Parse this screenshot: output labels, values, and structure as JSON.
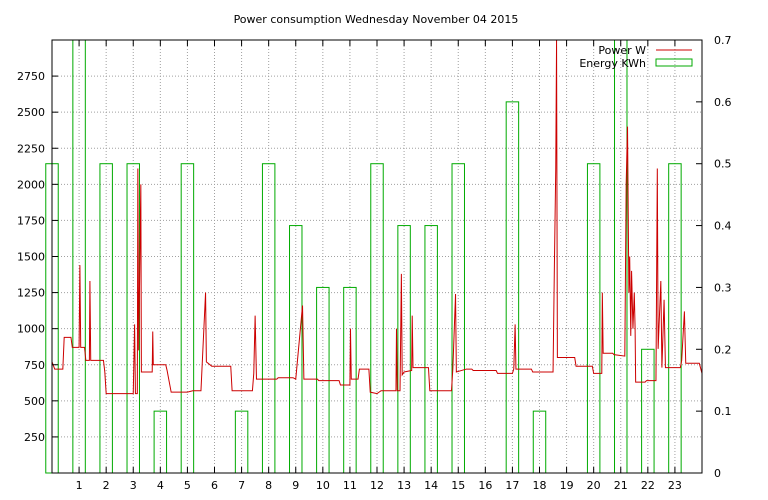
{
  "chart_data": {
    "type": "line",
    "title": "Power consumption Wednesday November 04 2015",
    "xlim": [
      0,
      24
    ],
    "ylim_left": [
      0,
      3000
    ],
    "ylim_right": [
      0,
      0.7
    ],
    "x_ticks": [
      1,
      2,
      3,
      4,
      5,
      6,
      7,
      8,
      9,
      10,
      11,
      12,
      13,
      14,
      15,
      16,
      17,
      18,
      19,
      20,
      21,
      22,
      23
    ],
    "y_ticks_left": [
      250,
      500,
      750,
      1000,
      1250,
      1500,
      1750,
      2000,
      2250,
      2500,
      2750
    ],
    "y_ticks_right": [
      0,
      0.1,
      0.2,
      0.3,
      0.4,
      0.5,
      0.6,
      0.7
    ],
    "grid": true,
    "legend_position": "top-right",
    "series": [
      {
        "name": "Power W",
        "color": "#cc0000",
        "axis": "left",
        "points": [
          [
            0.0,
            770
          ],
          [
            0.1,
            720
          ],
          [
            0.4,
            720
          ],
          [
            0.45,
            940
          ],
          [
            0.7,
            940
          ],
          [
            0.75,
            870
          ],
          [
            1.0,
            870
          ],
          [
            1.03,
            1440
          ],
          [
            1.06,
            870
          ],
          [
            1.2,
            870
          ],
          [
            1.25,
            780
          ],
          [
            1.38,
            780
          ],
          [
            1.4,
            1330
          ],
          [
            1.43,
            780
          ],
          [
            1.9,
            780
          ],
          [
            1.95,
            700
          ],
          [
            2.0,
            550
          ],
          [
            3.0,
            550
          ],
          [
            3.05,
            1030
          ],
          [
            3.08,
            550
          ],
          [
            3.15,
            550
          ],
          [
            3.17,
            2110
          ],
          [
            3.2,
            850
          ],
          [
            3.28,
            2000
          ],
          [
            3.3,
            700
          ],
          [
            3.7,
            700
          ],
          [
            3.72,
            980
          ],
          [
            3.74,
            750
          ],
          [
            4.2,
            750
          ],
          [
            4.25,
            710
          ],
          [
            4.4,
            560
          ],
          [
            5.0,
            560
          ],
          [
            5.2,
            570
          ],
          [
            5.5,
            570
          ],
          [
            5.55,
            770
          ],
          [
            5.67,
            1250
          ],
          [
            5.7,
            770
          ],
          [
            5.9,
            740
          ],
          [
            6.6,
            740
          ],
          [
            6.65,
            570
          ],
          [
            7.4,
            570
          ],
          [
            7.45,
            690
          ],
          [
            7.5,
            1090
          ],
          [
            7.55,
            650
          ],
          [
            8.3,
            650
          ],
          [
            8.35,
            660
          ],
          [
            8.9,
            660
          ],
          [
            9.0,
            650
          ],
          [
            9.25,
            1160
          ],
          [
            9.3,
            650
          ],
          [
            9.8,
            650
          ],
          [
            9.85,
            640
          ],
          [
            10.6,
            640
          ],
          [
            10.65,
            610
          ],
          [
            11.0,
            610
          ],
          [
            11.02,
            1000
          ],
          [
            11.05,
            650
          ],
          [
            11.3,
            650
          ],
          [
            11.35,
            720
          ],
          [
            11.7,
            720
          ],
          [
            11.75,
            560
          ],
          [
            12.0,
            550
          ],
          [
            12.15,
            570
          ],
          [
            12.7,
            570
          ],
          [
            12.72,
            1000
          ],
          [
            12.75,
            570
          ],
          [
            12.85,
            570
          ],
          [
            12.9,
            1380
          ],
          [
            12.93,
            680
          ],
          [
            13.0,
            700
          ],
          [
            13.28,
            710
          ],
          [
            13.3,
            1090
          ],
          [
            13.33,
            730
          ],
          [
            13.9,
            730
          ],
          [
            13.95,
            570
          ],
          [
            14.5,
            570
          ],
          [
            14.75,
            570
          ],
          [
            14.8,
            720
          ],
          [
            14.9,
            1240
          ],
          [
            14.93,
            700
          ],
          [
            15.3,
            720
          ],
          [
            15.5,
            720
          ],
          [
            15.55,
            710
          ],
          [
            16.4,
            710
          ],
          [
            16.45,
            690
          ],
          [
            17.0,
            690
          ],
          [
            17.05,
            720
          ],
          [
            17.1,
            1030
          ],
          [
            17.13,
            720
          ],
          [
            17.7,
            720
          ],
          [
            17.75,
            700
          ],
          [
            18.5,
            700
          ],
          [
            18.55,
            1440
          ],
          [
            18.6,
            2110
          ],
          [
            18.63,
            3000
          ],
          [
            18.66,
            800
          ],
          [
            19.3,
            800
          ],
          [
            19.35,
            740
          ],
          [
            19.95,
            740
          ],
          [
            20.0,
            690
          ],
          [
            20.3,
            690
          ],
          [
            20.32,
            1250
          ],
          [
            20.35,
            830
          ],
          [
            20.7,
            830
          ],
          [
            20.75,
            820
          ],
          [
            21.15,
            810
          ],
          [
            21.2,
            2000
          ],
          [
            21.25,
            2400
          ],
          [
            21.3,
            1250
          ],
          [
            21.33,
            1500
          ],
          [
            21.37,
            950
          ],
          [
            21.4,
            1400
          ],
          [
            21.45,
            1000
          ],
          [
            21.5,
            1250
          ],
          [
            21.53,
            1000
          ],
          [
            21.55,
            630
          ],
          [
            21.9,
            630
          ],
          [
            21.95,
            640
          ],
          [
            22.3,
            640
          ],
          [
            22.35,
            2110
          ],
          [
            22.38,
            860
          ],
          [
            22.48,
            1330
          ],
          [
            22.52,
            730
          ],
          [
            22.6,
            1200
          ],
          [
            22.65,
            730
          ],
          [
            23.2,
            730
          ],
          [
            23.25,
            780
          ],
          [
            23.35,
            1120
          ],
          [
            23.4,
            760
          ],
          [
            23.9,
            760
          ],
          [
            24.0,
            690
          ]
        ]
      },
      {
        "name": "Energy KWh",
        "color": "#00aa00",
        "axis": "right",
        "bars": [
          [
            0,
            0.5
          ],
          [
            1,
            0.7
          ],
          [
            2,
            0.5
          ],
          [
            3,
            0.5
          ],
          [
            4,
            0.1
          ],
          [
            5,
            0.5
          ],
          [
            7,
            0.1
          ],
          [
            8,
            0.5
          ],
          [
            9,
            0.4
          ],
          [
            10,
            0.3
          ],
          [
            11,
            0.3
          ],
          [
            12,
            0.5
          ],
          [
            13,
            0.4
          ],
          [
            14,
            0.4
          ],
          [
            15,
            0.5
          ],
          [
            17,
            0.6
          ],
          [
            18,
            0.1
          ],
          [
            20,
            0.5
          ],
          [
            21,
            0.7
          ],
          [
            22,
            0.2
          ],
          [
            23,
            0.5
          ]
        ]
      }
    ]
  }
}
